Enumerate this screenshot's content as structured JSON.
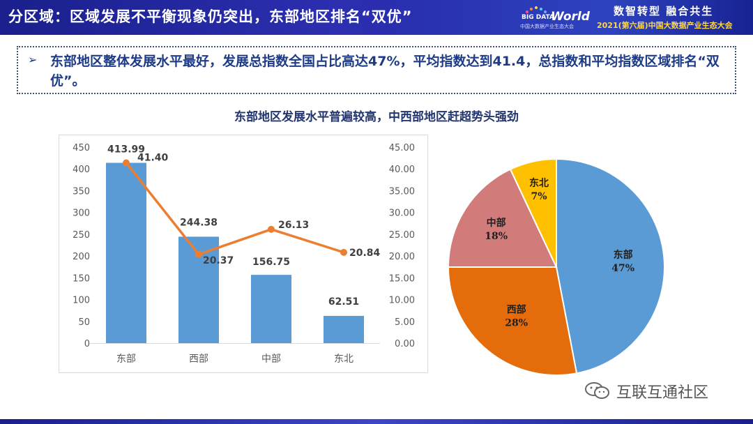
{
  "header": {
    "title": "分区域：区域发展不平衡现象仍突出，东部地区排名“双优”",
    "logo_line1": "BIG DATA",
    "logo_line2": "World",
    "logo_sub": "中国大数据产业生态大会",
    "slogan": "数智转型 融合共生",
    "conference": "2021(第六届)中国大数据产业生态大会"
  },
  "summary": {
    "arrow": "➢",
    "text": "东部地区整体发展水平最好，发展总指数全国占比高达47%，平均指数达到41.4，总指数和平均指数区域排名“双优”。"
  },
  "chart_data": [
    {
      "type": "bar",
      "title": "东部地区发展水平普遍较高，中西部地区赶超势头强劲",
      "categories": [
        "东部",
        "西部",
        "中部",
        "东北"
      ],
      "series": [
        {
          "values": [
            413.99,
            244.38,
            156.75,
            62.51
          ],
          "axis": "left",
          "kind": "bar",
          "color": "#5b9bd5"
        },
        {
          "values": [
            41.4,
            20.37,
            26.13,
            20.84
          ],
          "axis": "right",
          "kind": "line",
          "color": "#ed7d31"
        }
      ],
      "ylim_left": [
        0,
        450
      ],
      "ylim_right": [
        0,
        45
      ],
      "yticks_left": [
        "0",
        "50",
        "100",
        "150",
        "200",
        "250",
        "300",
        "350",
        "400",
        "450"
      ],
      "yticks_right": [
        "0.00",
        "5.00",
        "10.00",
        "15.00",
        "20.00",
        "25.00",
        "30.00",
        "35.00",
        "40.00",
        "45.00"
      ],
      "bar_labels": [
        "413.99",
        "244.38",
        "156.75",
        "62.51"
      ],
      "line_labels": [
        "41.40",
        "20.37",
        "26.13",
        "20.84"
      ],
      "grid": false,
      "legend": "none"
    },
    {
      "type": "pie",
      "categories": [
        "东部",
        "西部",
        "中部",
        "东北"
      ],
      "values": [
        47,
        28,
        18,
        7
      ],
      "labels": [
        "47%",
        "28%",
        "18%",
        "7%"
      ],
      "colors": [
        "#5b9bd5",
        "#e46c0a",
        "#d27b7b",
        "#ffc000"
      ],
      "legend": "none"
    }
  ],
  "watermark": {
    "text": "互联互通社区"
  }
}
